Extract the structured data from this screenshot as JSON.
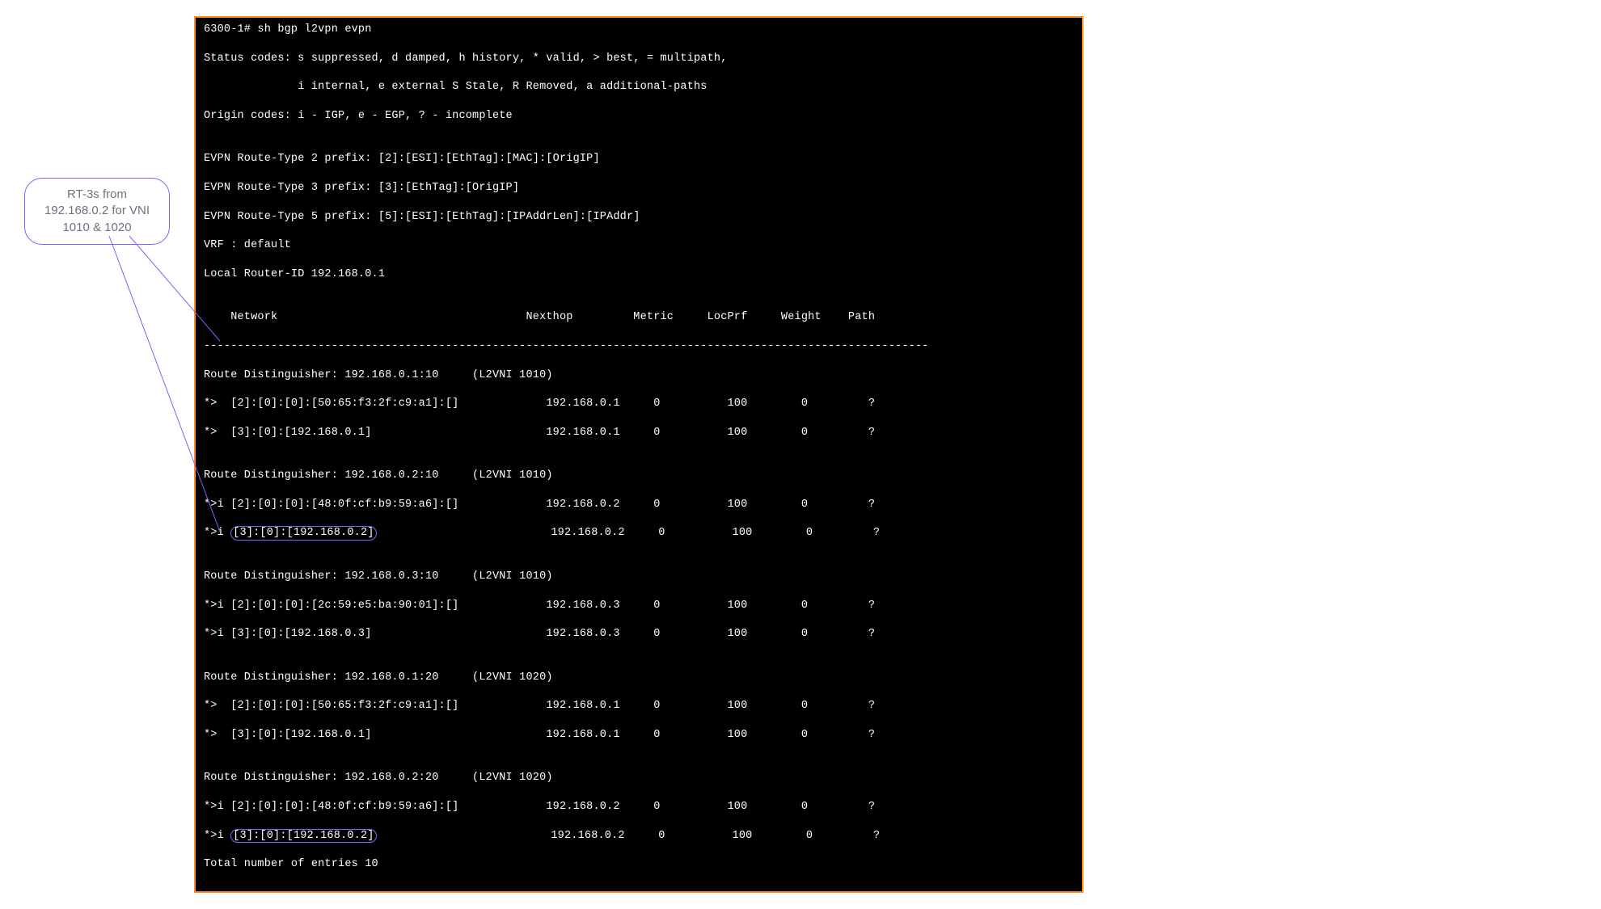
{
  "callout": {
    "line1": "RT-3s from",
    "line2": "192.168.0.2 for VNI",
    "line3": "1010 & 1020"
  },
  "terminal": {
    "prompt_line": "6300-1# sh bgp l2vpn evpn",
    "status_line1": "Status codes: s suppressed, d damped, h history, * valid, > best, = multipath,",
    "status_line2": "              i internal, e external S Stale, R Removed, a additional-paths",
    "origin_line": "Origin codes: i - IGP, e - EGP, ? - incomplete",
    "rt2_line": "EVPN Route-Type 2 prefix: [2]:[ESI]:[EthTag]:[MAC]:[OrigIP]",
    "rt3_line": "EVPN Route-Type 3 prefix: [3]:[EthTag]:[OrigIP]",
    "rt5_line": "EVPN Route-Type 5 prefix: [5]:[ESI]:[EthTag]:[IPAddrLen]:[IPAddr]",
    "vrf_line": "VRF : default",
    "router_id_line": "Local Router-ID 192.168.0.1",
    "header_line": "    Network                                     Nexthop         Metric     LocPrf     Weight    Path",
    "separator": "------------------------------------------------------------------------------------------------------------",
    "groups": [
      {
        "rd_line": "Route Distinguisher: 192.168.0.1:10     (L2VNI 1010)",
        "routes": [
          {
            "text": "*>  [2]:[0]:[0]:[50:65:f3:2f:c9:a1]:[]             192.168.0.1     0          100        0         ?",
            "hl": false
          },
          {
            "text": "*>  [3]:[0]:[192.168.0.1]                          192.168.0.1     0          100        0         ?",
            "hl": false
          }
        ]
      },
      {
        "rd_line": "Route Distinguisher: 192.168.0.2:10     (L2VNI 1010)",
        "routes": [
          {
            "text": "*>i [2]:[0]:[0]:[48:0f:cf:b9:59:a6]:[]             192.168.0.2     0          100        0         ?",
            "hl": false
          },
          {
            "prefix": "*>i ",
            "hl_text": "[3]:[0]:[192.168.0.2]",
            "suffix": "                          192.168.0.2     0          100        0         ?",
            "hl": true
          }
        ]
      },
      {
        "rd_line": "Route Distinguisher: 192.168.0.3:10     (L2VNI 1010)",
        "routes": [
          {
            "text": "*>i [2]:[0]:[0]:[2c:59:e5:ba:90:01]:[]             192.168.0.3     0          100        0         ?",
            "hl": false
          },
          {
            "text": "*>i [3]:[0]:[192.168.0.3]                          192.168.0.3     0          100        0         ?",
            "hl": false
          }
        ]
      },
      {
        "rd_line": "Route Distinguisher: 192.168.0.1:20     (L2VNI 1020)",
        "routes": [
          {
            "text": "*>  [2]:[0]:[0]:[50:65:f3:2f:c9:a1]:[]             192.168.0.1     0          100        0         ?",
            "hl": false
          },
          {
            "text": "*>  [3]:[0]:[192.168.0.1]                          192.168.0.1     0          100        0         ?",
            "hl": false
          }
        ]
      },
      {
        "rd_line": "Route Distinguisher: 192.168.0.2:20     (L2VNI 1020)",
        "routes": [
          {
            "text": "*>i [2]:[0]:[0]:[48:0f:cf:b9:59:a6]:[]             192.168.0.2     0          100        0         ?",
            "hl": false
          },
          {
            "prefix": "*>i ",
            "hl_text": "[3]:[0]:[192.168.0.2]",
            "suffix": "                          192.168.0.2     0          100        0         ?",
            "hl": true
          }
        ]
      }
    ],
    "total_line": "Total number of entries 10"
  },
  "colors": {
    "terminal_bg": "#000000",
    "terminal_border": "#ff8c1a",
    "terminal_text": "#ffffff",
    "highlight_border": "#8b5cf6",
    "callout_text": "#6b7280"
  }
}
